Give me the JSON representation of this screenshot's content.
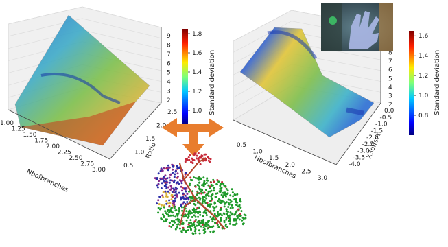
{
  "chart_data": [
    {
      "type": "surface",
      "x": {
        "label": "Nbofbranches",
        "ticks": [
          1.0,
          1.25,
          1.5,
          1.75,
          2.0,
          2.25,
          2.5,
          2.75,
          3.0
        ]
      },
      "y": {
        "label": "Ratio",
        "ticks": [
          0.5,
          1.0,
          1.5,
          2.0,
          2.5
        ]
      },
      "z": {
        "ticks": [
          2,
          3,
          4,
          5,
          6,
          7,
          8,
          9
        ]
      },
      "colorbar": {
        "label": "Standard deviation",
        "ticks": [
          1.0,
          1.2,
          1.4,
          1.6,
          1.8
        ],
        "range": [
          0.85,
          1.85
        ]
      },
      "grid": true,
      "colormap": "jet"
    },
    {
      "type": "surface",
      "x": {
        "label": "Nbofbranches",
        "ticks": [
          0.5,
          1.0,
          1.5,
          2.0,
          2.5,
          3.0
        ]
      },
      "y": {
        "label": "X3offset",
        "ticks": [
          0.0,
          -0.5,
          -1.0,
          -1.5,
          -2.0,
          -2.5,
          -3.0,
          -3.5,
          -4.0
        ]
      },
      "z": {
        "ticks": [
          2,
          3,
          4,
          5,
          6,
          7,
          8,
          9
        ]
      },
      "colorbar": {
        "label": "Standard deviation",
        "ticks": [
          0.8,
          1.0,
          1.2,
          1.4,
          1.6
        ],
        "range": [
          0.6,
          1.65
        ]
      },
      "grid": true,
      "colormap": "jet"
    }
  ],
  "figure": {
    "arrow_color": "#e87d2e",
    "bunny_colors": [
      "#1f9a2a",
      "#2b2fa8",
      "#c72a3a",
      "#d8b23a",
      "#8a2a8a"
    ],
    "skeleton_color": "#b5452a"
  }
}
